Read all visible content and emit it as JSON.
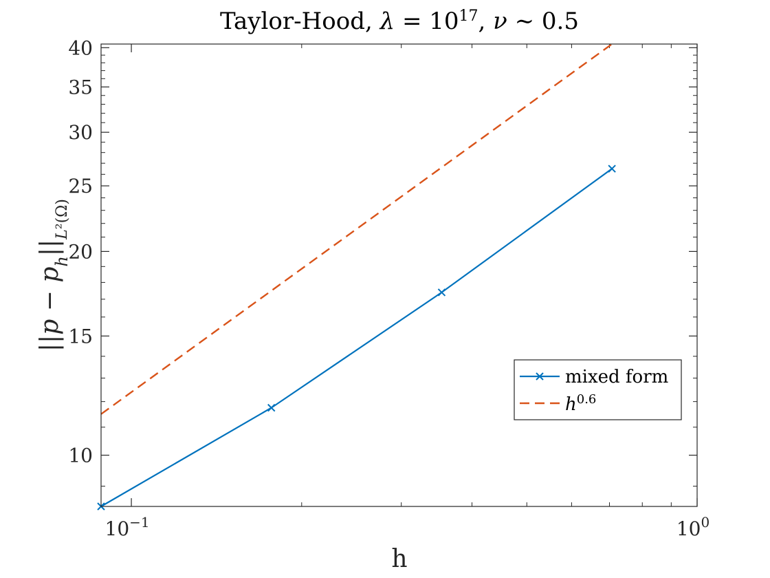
{
  "chart_data": {
    "type": "line",
    "title": "Taylor-Hood, λ = 10^17, ν ∼ 0.5",
    "xlabel": "h",
    "ylabel": "||p − p_h||_{L²(Ω)}",
    "xscale": "log",
    "yscale": "log",
    "xlim": [
      0.0884,
      1.0
    ],
    "ylim": [
      8.4,
      40.5
    ],
    "x_ticks": [
      0.1,
      1.0
    ],
    "x_tick_labels": [
      "10",
      "10"
    ],
    "x_tick_exponents": [
      "−1",
      "0"
    ],
    "y_ticks": [
      10,
      15,
      20,
      25,
      30,
      35,
      40
    ],
    "y_tick_labels": [
      "10",
      "15",
      "20",
      "25",
      "30",
      "35",
      "40"
    ],
    "grid": false,
    "legend_position": "lower-right",
    "series": [
      {
        "name": "mixed form",
        "style": "solid",
        "marker": "x",
        "color": "#0072BD",
        "x": [
          0.0884,
          0.1768,
          0.3536,
          0.7071
        ],
        "y": [
          8.4,
          11.75,
          17.4,
          26.5
        ]
      },
      {
        "name": "h^0.6",
        "style": "dashed",
        "marker": "none",
        "color": "#D95319",
        "x": [
          0.0884,
          0.7071
        ],
        "y": [
          11.5,
          40.5
        ]
      }
    ]
  }
}
